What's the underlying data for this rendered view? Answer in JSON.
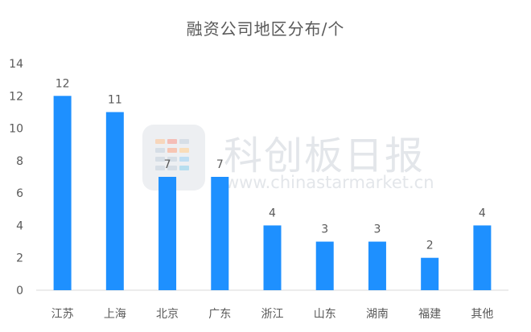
{
  "chart_data": {
    "type": "bar",
    "title": "融资公司地区分布/个",
    "xlabel": "",
    "ylabel": "",
    "categories": [
      "江苏",
      "上海",
      "北京",
      "广东",
      "浙江",
      "山东",
      "湖南",
      "福建",
      "其他"
    ],
    "values": [
      12,
      11,
      7,
      7,
      4,
      3,
      3,
      2,
      4
    ],
    "ylim": [
      0,
      14
    ],
    "yticks": [
      0,
      2,
      4,
      6,
      8,
      10,
      12,
      14
    ],
    "grid": false,
    "data_labels": true,
    "bar_color": "#1e90ff",
    "axis_color": "#d9d9d9",
    "text_color": "#595959"
  },
  "watermark": {
    "title": "科创板日报",
    "url": "www.chinastarmarket.cn"
  }
}
